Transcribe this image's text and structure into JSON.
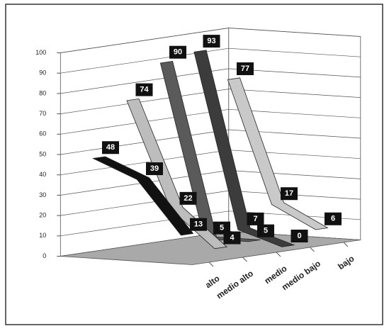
{
  "chart_data": {
    "type": "line3d",
    "categories": [
      "alto",
      "medio alto",
      "medio",
      "medio bajo",
      "bajo"
    ],
    "colors": [
      "#111111",
      "#bdbdbd",
      "#5a5a5a",
      "#3c3c3c",
      "#c9c9c9"
    ],
    "series": [
      {
        "values": [
          48,
          74,
          90,
          93,
          77
        ]
      },
      {
        "values": [
          39,
          22,
          5,
          7,
          17
        ]
      },
      {
        "values": [
          13,
          4,
          5,
          0,
          6
        ]
      }
    ],
    "ylim": [
      0,
      100
    ],
    "yticks": [
      0,
      10,
      20,
      30,
      40,
      50,
      60,
      70,
      80,
      90,
      100
    ],
    "grid": true
  }
}
